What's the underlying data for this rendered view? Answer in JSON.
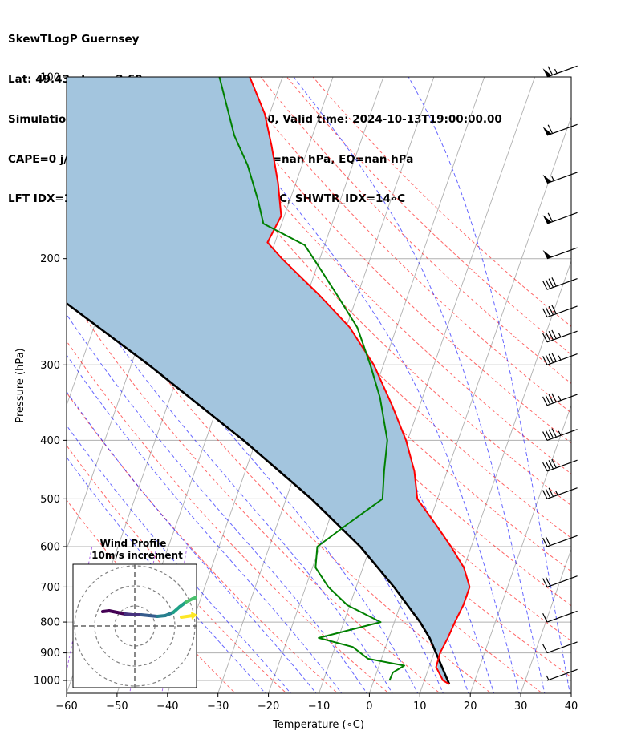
{
  "header": {
    "line1": "SkewTLogP Guernsey",
    "line2": "Lat: 49.43   Lon: -2.60",
    "line3": "Simulation start time: 2024-10-12_00:00:00, Valid time: 2024-10-13T19:00:00.00",
    "line4": "CAPE=0 j/kg, CIN=0 j/kg, LCL=909 hPa, LFC=nan hPa, EQ=nan hPa",
    "line5": "LFT IDX=11∘C, K IDX=1∘C, TOTAL TOTS=29∘C, SHWTR_IDX=14∘C"
  },
  "chart_data": {
    "type": "line",
    "subtype": "skew-t log-p",
    "xlabel": "Temperature (∘C)",
    "ylabel": "Pressure (hPa)",
    "xlim": [
      -60,
      40
    ],
    "ylim": [
      1050,
      100
    ],
    "y_scale": "log",
    "x_ticks": [
      "−60",
      "−50",
      "−40",
      "−30",
      "−20",
      "−10",
      "0",
      "10",
      "20",
      "30",
      "40"
    ],
    "y_ticks": [
      "100",
      "200",
      "300",
      "400",
      "500",
      "600",
      "700",
      "800",
      "900",
      "1000"
    ],
    "grid": true,
    "series": [
      {
        "role": "temperature",
        "color": "#ff0000",
        "points": [
          [
            1014,
            15.2
          ],
          [
            1000,
            13.7
          ],
          [
            950,
            11.4
          ],
          [
            900,
            11.2
          ],
          [
            850,
            11.7
          ],
          [
            800,
            12.0
          ],
          [
            750,
            12.5
          ],
          [
            700,
            12.5
          ],
          [
            650,
            10.0
          ],
          [
            600,
            6.0
          ],
          [
            550,
            1.3
          ],
          [
            500,
            -4.0
          ],
          [
            450,
            -6.5
          ],
          [
            400,
            -10.3
          ],
          [
            350,
            -15.5
          ],
          [
            300,
            -21.9
          ],
          [
            260,
            -29.3
          ],
          [
            230,
            -37.5
          ],
          [
            200,
            -47.5
          ],
          [
            188,
            -51.5
          ],
          [
            170,
            -50.6
          ],
          [
            150,
            -53.5
          ],
          [
            130,
            -57.4
          ],
          [
            115,
            -61.0
          ],
          [
            100,
            -66.5
          ]
        ]
      },
      {
        "role": "dewpoint",
        "color": "#008000",
        "points": [
          [
            1000,
            3.1
          ],
          [
            970,
            3.2
          ],
          [
            945,
            5.0
          ],
          [
            920,
            -2.7
          ],
          [
            880,
            -6.5
          ],
          [
            850,
            -13.9
          ],
          [
            800,
            -2.7
          ],
          [
            750,
            -10.5
          ],
          [
            700,
            -15.5
          ],
          [
            650,
            -19.4
          ],
          [
            600,
            -20.5
          ],
          [
            550,
            -16.0
          ],
          [
            500,
            -10.9
          ],
          [
            450,
            -12.5
          ],
          [
            400,
            -14.0
          ],
          [
            340,
            -18.4
          ],
          [
            300,
            -22.6
          ],
          [
            260,
            -27.8
          ],
          [
            230,
            -34.0
          ],
          [
            210,
            -38.7
          ],
          [
            190,
            -43.9
          ],
          [
            175,
            -53.6
          ],
          [
            160,
            -56.3
          ],
          [
            140,
            -60.8
          ],
          [
            125,
            -65.5
          ],
          [
            100,
            -72.5
          ]
        ]
      },
      {
        "role": "parcel",
        "color": "#000000",
        "points": [
          [
            1014,
            15.2
          ],
          [
            909,
            10.8
          ],
          [
            850,
            8.1
          ],
          [
            800,
            5.1
          ],
          [
            700,
            -2.5
          ],
          [
            600,
            -12.0
          ],
          [
            500,
            -25.0
          ],
          [
            400,
            -42.5
          ],
          [
            300,
            -66.5
          ],
          [
            200,
            -102.0
          ],
          [
            150,
            -126.0
          ],
          [
            120,
            -143.0
          ],
          [
            100,
            -156.0
          ]
        ]
      }
    ],
    "shaded_area": {
      "between": [
        "temperature",
        "parcel"
      ],
      "color": "#a3c5de"
    },
    "wind_barbs": {
      "pressures": [
        100,
        125,
        150,
        175,
        200,
        225,
        250,
        275,
        300,
        350,
        400,
        450,
        500,
        600,
        700,
        800,
        900,
        1000
      ],
      "speed_kt": [
        65,
        60,
        55,
        60,
        50,
        40,
        40,
        45,
        45,
        45,
        45,
        40,
        35,
        20,
        20,
        10,
        10,
        5
      ]
    },
    "inset": {
      "title": "Wind Profile",
      "subtitle": "10m/s increment",
      "rings_ms": [
        10,
        20,
        30
      ]
    }
  }
}
